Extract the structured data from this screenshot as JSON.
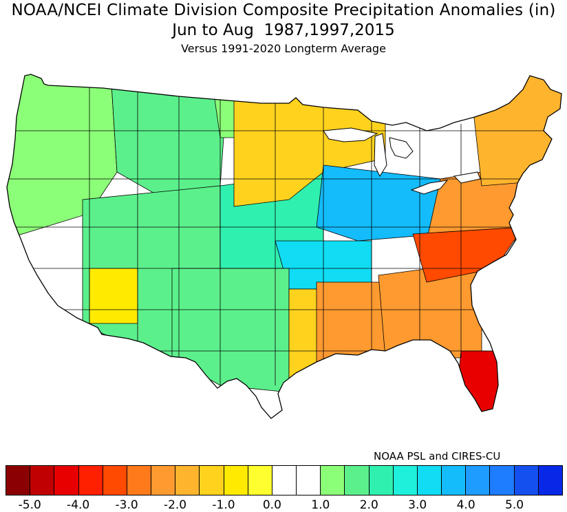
{
  "title": {
    "line1": "NOAA/NCEI Climate Division Composite Precipitation Anomalies (in)",
    "line2": "Jun to Aug  1987,1997,2015",
    "line3": "Versus 1991-2020 Longterm Average"
  },
  "credit": "NOAA PSL and CIRES-CU",
  "colorbar": {
    "colors": [
      "#8b0000",
      "#c00000",
      "#e80000",
      "#ff2000",
      "#ff4a00",
      "#ff7a1a",
      "#ff9a30",
      "#ffb42e",
      "#ffd21e",
      "#ffea00",
      "#ffff30",
      "#ffffff",
      "#ffffff",
      "#8cff78",
      "#5cf08c",
      "#30f0b0",
      "#1ef0dc",
      "#10dcf4",
      "#14bcfc",
      "#1e9cff",
      "#1e7cff",
      "#1450f0",
      "#0828e8"
    ],
    "tick_labels": [
      "-5.0",
      "-4.0",
      "-3.0",
      "-2.0",
      "-1.0",
      "0.0",
      "1.0",
      "2.0",
      "3.0",
      "4.0",
      "5.0"
    ],
    "tick_values": [
      -5,
      -4,
      -3,
      -2,
      -1,
      0,
      1,
      2,
      3,
      4,
      5
    ]
  },
  "map_regions": [
    {
      "name": "pacific-northwest",
      "anomaly": 1.0,
      "color": "#8cff78"
    },
    {
      "name": "northern-rockies",
      "anomaly": 1.5,
      "color": "#5cf08c"
    },
    {
      "name": "north-dakota-west",
      "anomaly": 1.0,
      "color": "#8cff78"
    },
    {
      "name": "upper-midwest",
      "anomaly": -1.0,
      "color": "#ffd21e"
    },
    {
      "name": "ohio-valley",
      "anomaly": 3.0,
      "color": "#14bcfc"
    },
    {
      "name": "great-plains-central",
      "anomaly": 2.0,
      "color": "#30f0b0"
    },
    {
      "name": "southern-plains",
      "anomaly": 2.5,
      "color": "#10dcf4"
    },
    {
      "name": "texas-west",
      "anomaly": 1.5,
      "color": "#5cf08c"
    },
    {
      "name": "texas-east",
      "anomaly": -1.0,
      "color": "#ffd21e"
    },
    {
      "name": "lower-mississippi",
      "anomaly": -2.5,
      "color": "#ff9a30"
    },
    {
      "name": "southeast",
      "anomaly": -2.5,
      "color": "#ff9a30"
    },
    {
      "name": "carolinas",
      "anomaly": -3.5,
      "color": "#ff4a00"
    },
    {
      "name": "florida-south",
      "anomaly": -4.5,
      "color": "#e80000"
    },
    {
      "name": "mid-atlantic",
      "anomaly": -2.5,
      "color": "#ff9a30"
    },
    {
      "name": "new-england",
      "anomaly": -1.5,
      "color": "#ffb42e"
    },
    {
      "name": "arizona-west",
      "anomaly": -1.0,
      "color": "#ffea00"
    },
    {
      "name": "southwest",
      "anomaly": 1.5,
      "color": "#5cf08c"
    }
  ]
}
